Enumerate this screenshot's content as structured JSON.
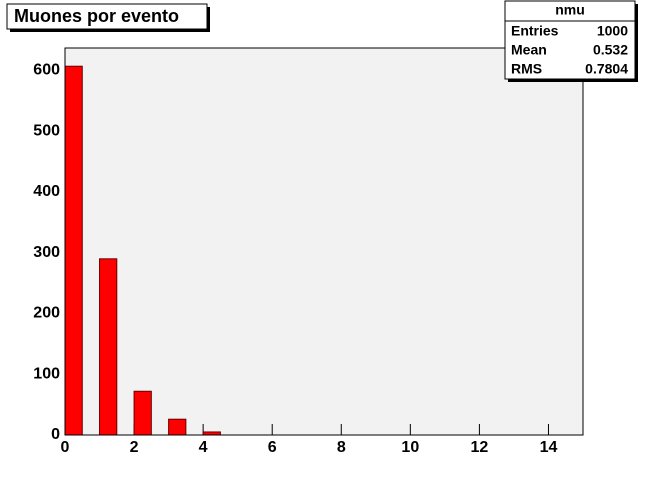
{
  "chart_data": {
    "type": "histogram",
    "title": "Muones por evento",
    "bins": [
      0,
      0.5,
      1,
      1.5,
      2,
      2.5,
      3,
      3.5,
      4,
      4.5,
      5,
      5.5,
      6,
      6.5,
      7,
      7.5,
      8,
      8.5,
      9,
      9.5,
      10,
      10.5,
      11,
      11.5,
      12,
      12.5,
      13,
      13.5,
      14,
      14.5,
      15
    ],
    "values": [
      607,
      0,
      290,
      0,
      72,
      0,
      26,
      0,
      5,
      0,
      0,
      0,
      0,
      0,
      0,
      0,
      0,
      0,
      0,
      0,
      0,
      0,
      0,
      0,
      0,
      0,
      0,
      0,
      0,
      0
    ],
    "color": "#ff0000",
    "xlim": [
      0,
      15
    ],
    "xticks": [
      0,
      2,
      4,
      6,
      8,
      10,
      12,
      14
    ],
    "ylim": [
      0,
      637
    ],
    "yticks": [
      0,
      100,
      200,
      300,
      400,
      500,
      600
    ],
    "stats": {
      "title": "nmu",
      "rows": [
        [
          "Entries",
          1000
        ],
        [
          "Mean",
          0.532
        ],
        [
          "RMS",
          0.7804
        ]
      ]
    }
  }
}
